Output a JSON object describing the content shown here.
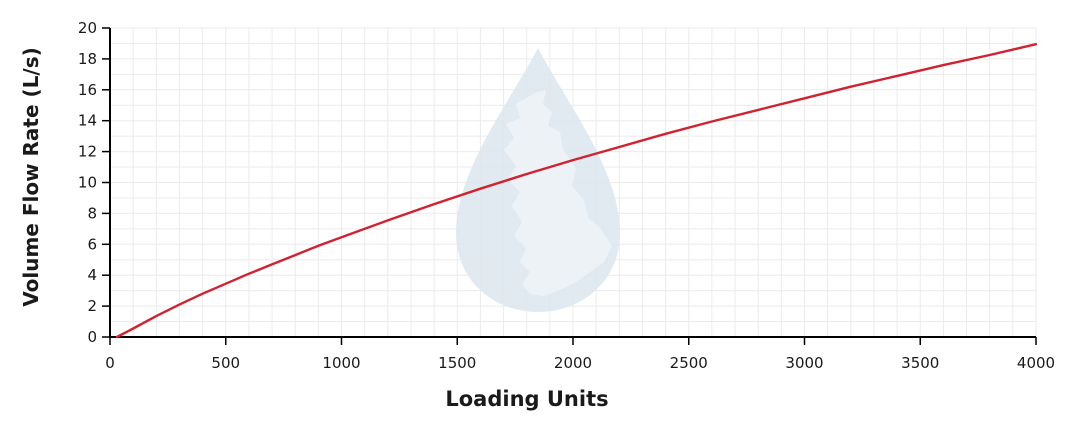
{
  "chart_data": {
    "type": "line",
    "title": "",
    "xlabel": "Loading Units",
    "ylabel": "Volume Flow Rate (L/s)",
    "xlim": [
      0,
      4000
    ],
    "ylim": [
      0,
      20
    ],
    "x_ticks": [
      0,
      500,
      1000,
      1500,
      2000,
      2500,
      3000,
      3500,
      4000
    ],
    "y_ticks": [
      0,
      2,
      4,
      6,
      8,
      10,
      12,
      14,
      16,
      18,
      20
    ],
    "grid": true,
    "legend": "none",
    "watermark": "water-drop-map-icon",
    "colors": {
      "line": "#d0222f",
      "axis": "#000000",
      "grid": "#ebebeb",
      "watermark": "#dde6ef"
    },
    "series": [
      {
        "x": [
          30,
          100,
          200,
          300,
          400,
          500,
          600,
          700,
          800,
          900,
          1000,
          1200,
          1400,
          1600,
          1800,
          2000,
          2200,
          2400,
          2600,
          2800,
          3000,
          3200,
          3400,
          3600,
          3800,
          4000
        ],
        "values": [
          0.0,
          0.55,
          1.35,
          2.1,
          2.8,
          3.45,
          4.1,
          4.7,
          5.3,
          5.9,
          6.45,
          7.55,
          8.6,
          9.6,
          10.55,
          11.45,
          12.3,
          13.15,
          13.95,
          14.7,
          15.45,
          16.2,
          16.9,
          17.6,
          18.25,
          18.95
        ]
      }
    ]
  }
}
